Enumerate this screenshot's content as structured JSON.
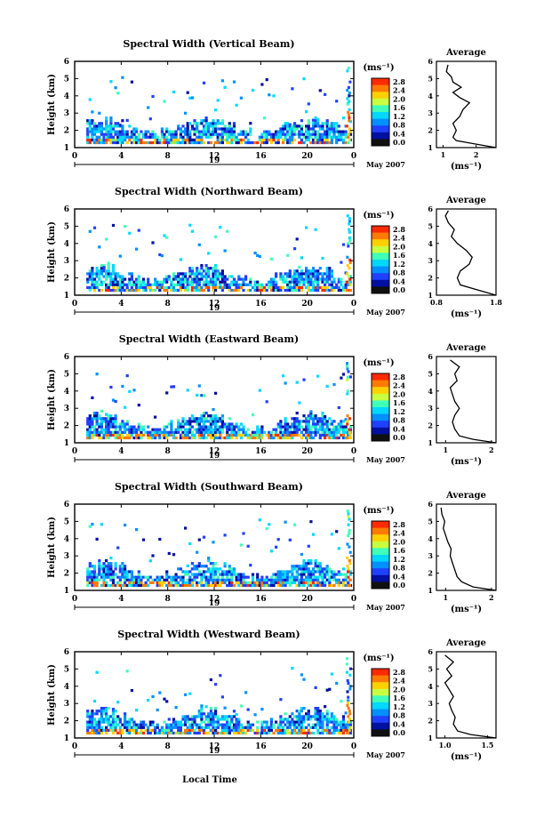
{
  "xlabel": "Local Time",
  "date_label": "May 2007",
  "date_tick": "19",
  "colorbar": {
    "unit": "(ms⁻¹)",
    "ticks": [
      "2.8",
      "2.4",
      "2.0",
      "1.6",
      "1.2",
      "0.8",
      "0.4",
      "0.0"
    ],
    "colors": [
      "#ff2a00",
      "#ff7a00",
      "#ffd000",
      "#c8ff40",
      "#40ffb8",
      "#00d8ff",
      "#0090ff",
      "#2040ff",
      "#0010a0",
      "#101010"
    ]
  },
  "chart_data": [
    {
      "type": "heatmap",
      "title": "Spectral Width (Vertical Beam)",
      "ylabel": "Height (km)",
      "x_ticks": [
        "0",
        "4",
        "8",
        "12",
        "16",
        "20",
        "0"
      ],
      "y_ticks": [
        "1",
        "2",
        "3",
        "4",
        "5",
        "6"
      ],
      "xlim": [
        0,
        24
      ],
      "ylim": [
        1,
        6
      ],
      "average": {
        "title": "Average",
        "xlabel": "(ms⁻¹)",
        "x_ticks": [
          "1",
          "2"
        ],
        "xlim": [
          0.8,
          2.6
        ],
        "profile": [
          [
            1.0,
            2.6
          ],
          [
            1.2,
            2.0
          ],
          [
            1.4,
            1.4
          ],
          [
            1.6,
            1.3
          ],
          [
            1.8,
            1.35
          ],
          [
            2.0,
            1.4
          ],
          [
            2.4,
            1.3
          ],
          [
            2.8,
            1.5
          ],
          [
            3.2,
            1.6
          ],
          [
            3.6,
            1.8
          ],
          [
            3.9,
            1.5
          ],
          [
            4.2,
            1.3
          ],
          [
            4.5,
            1.55
          ],
          [
            4.8,
            1.3
          ],
          [
            5.1,
            1.25
          ],
          [
            5.4,
            1.1
          ],
          [
            5.8,
            1.15
          ]
        ]
      }
    },
    {
      "type": "heatmap",
      "title": "Spectral Width (Northward Beam)",
      "ylabel": "Height (km)",
      "x_ticks": [
        "0",
        "4",
        "8",
        "12",
        "16",
        "20",
        "0"
      ],
      "y_ticks": [
        "1",
        "2",
        "3",
        "4",
        "5",
        "6"
      ],
      "xlim": [
        0,
        24
      ],
      "ylim": [
        1,
        6
      ],
      "average": {
        "title": "Average",
        "xlabel": "(ms⁻¹)",
        "x_ticks": [
          "0.8",
          "1.8"
        ],
        "xlim": [
          0.8,
          1.8
        ],
        "profile": [
          [
            1.0,
            1.8
          ],
          [
            1.3,
            1.5
          ],
          [
            1.6,
            1.2
          ],
          [
            2.0,
            1.15
          ],
          [
            2.4,
            1.2
          ],
          [
            2.8,
            1.35
          ],
          [
            3.2,
            1.4
          ],
          [
            3.6,
            1.3
          ],
          [
            4.0,
            1.15
          ],
          [
            4.4,
            1.05
          ],
          [
            4.8,
            1.1
          ],
          [
            5.2,
            1.0
          ],
          [
            5.6,
            0.95
          ],
          [
            5.9,
            1.0
          ]
        ]
      }
    },
    {
      "type": "heatmap",
      "title": "Spectral Width (Eastward Beam)",
      "ylabel": "Height (km)",
      "x_ticks": [
        "0",
        "4",
        "8",
        "12",
        "16",
        "20",
        "0"
      ],
      "y_ticks": [
        "1",
        "2",
        "3",
        "4",
        "5",
        "6"
      ],
      "xlim": [
        0,
        24
      ],
      "ylim": [
        1,
        6
      ],
      "average": {
        "title": "Average",
        "xlabel": "(ms⁻¹)",
        "x_ticks": [
          "1",
          "2"
        ],
        "xlim": [
          0.8,
          2.1
        ],
        "profile": [
          [
            1.0,
            2.1
          ],
          [
            1.2,
            1.6
          ],
          [
            1.4,
            1.3
          ],
          [
            1.8,
            1.2
          ],
          [
            2.2,
            1.15
          ],
          [
            2.6,
            1.2
          ],
          [
            3.0,
            1.3
          ],
          [
            3.4,
            1.2
          ],
          [
            3.8,
            1.15
          ],
          [
            4.2,
            1.1
          ],
          [
            4.6,
            1.25
          ],
          [
            5.0,
            1.2
          ],
          [
            5.4,
            1.3
          ],
          [
            5.8,
            1.1
          ]
        ]
      }
    },
    {
      "type": "heatmap",
      "title": "Spectral Width (Southward Beam)",
      "ylabel": "Height (km)",
      "x_ticks": [
        "0",
        "4",
        "8",
        "12",
        "16",
        "20",
        "0"
      ],
      "y_ticks": [
        "1",
        "2",
        "3",
        "4",
        "5",
        "6"
      ],
      "xlim": [
        0,
        24
      ],
      "ylim": [
        1,
        6
      ],
      "average": {
        "title": "Average",
        "xlabel": "(ms⁻¹)",
        "x_ticks": [
          "1",
          "2"
        ],
        "xlim": [
          0.8,
          2.1
        ],
        "profile": [
          [
            1.0,
            2.1
          ],
          [
            1.2,
            1.6
          ],
          [
            1.5,
            1.35
          ],
          [
            1.8,
            1.25
          ],
          [
            2.2,
            1.2
          ],
          [
            2.6,
            1.15
          ],
          [
            3.0,
            1.1
          ],
          [
            3.4,
            1.12
          ],
          [
            3.8,
            1.05
          ],
          [
            4.2,
            1.0
          ],
          [
            4.6,
            0.95
          ],
          [
            5.0,
            0.98
          ],
          [
            5.4,
            0.92
          ],
          [
            5.8,
            0.9
          ]
        ]
      }
    },
    {
      "type": "heatmap",
      "title": "Spectral Width (Westward Beam)",
      "ylabel": "Height (km)",
      "x_ticks": [
        "0",
        "4",
        "8",
        "12",
        "16",
        "20",
        "0"
      ],
      "y_ticks": [
        "1",
        "2",
        "3",
        "4",
        "5",
        "6"
      ],
      "xlim": [
        0,
        24
      ],
      "ylim": [
        1,
        6
      ],
      "average": {
        "title": "Average",
        "xlabel": "(ms⁻¹)",
        "x_ticks": [
          "1.0",
          "1.5"
        ],
        "xlim": [
          0.9,
          1.6
        ],
        "profile": [
          [
            1.0,
            1.6
          ],
          [
            1.2,
            1.3
          ],
          [
            1.4,
            1.15
          ],
          [
            1.8,
            1.1
          ],
          [
            2.2,
            1.12
          ],
          [
            2.6,
            1.08
          ],
          [
            3.0,
            1.05
          ],
          [
            3.4,
            1.1
          ],
          [
            3.8,
            1.05
          ],
          [
            4.2,
            1.0
          ],
          [
            4.6,
            1.08
          ],
          [
            5.0,
            1.02
          ],
          [
            5.4,
            1.1
          ],
          [
            5.8,
            1.0
          ]
        ]
      }
    }
  ]
}
